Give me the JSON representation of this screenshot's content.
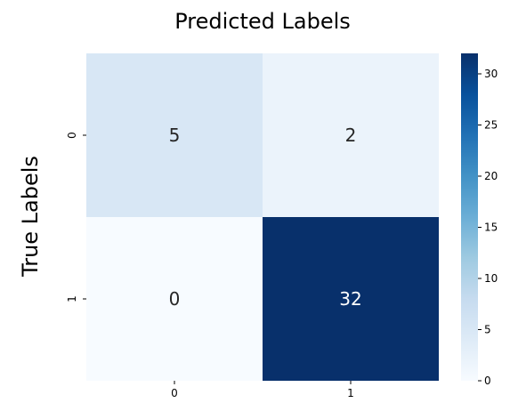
{
  "chart_data": {
    "type": "heatmap",
    "title": "Predicted Labels",
    "ylabel": "True Labels",
    "x_categories": [
      "0",
      "1"
    ],
    "y_categories": [
      "0",
      "1"
    ],
    "values": [
      [
        5,
        2
      ],
      [
        0,
        32
      ]
    ],
    "colorbar": {
      "min": 0,
      "max": 32,
      "ticks": [
        0,
        5,
        10,
        15,
        20,
        25,
        30
      ],
      "colormap": "Blues"
    },
    "grid": false,
    "annotations": true
  }
}
